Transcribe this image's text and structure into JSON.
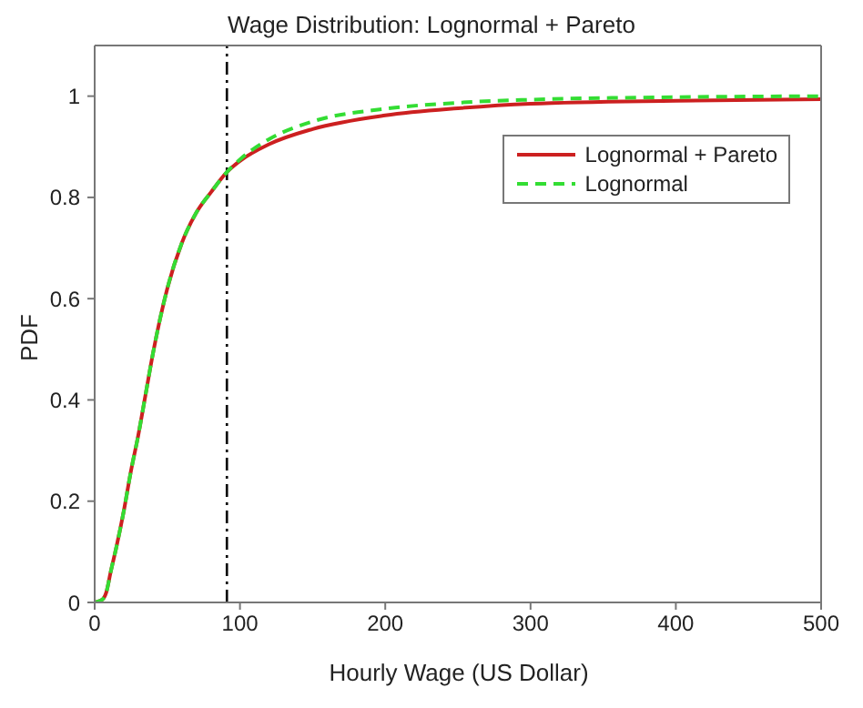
{
  "chart_data": {
    "type": "line",
    "title": "Wage Distribution: Lognormal + Pareto",
    "xlabel": "Hourly Wage (US Dollar)",
    "ylabel": "PDF",
    "x": [
      0,
      5,
      8,
      11,
      15,
      20,
      25,
      30,
      35,
      40,
      45,
      50,
      60,
      70,
      80,
      91,
      100,
      120,
      150,
      200,
      250,
      300,
      400,
      500
    ],
    "series": [
      {
        "name": "Lognormal + Pareto",
        "color": "#cc2020",
        "line_style": "solid",
        "values": [
          0,
          0.005,
          0.02,
          0.06,
          0.11,
          0.18,
          0.26,
          0.33,
          0.41,
          0.49,
          0.56,
          0.62,
          0.71,
          0.77,
          0.81,
          0.85,
          0.872,
          0.905,
          0.935,
          0.962,
          0.976,
          0.985,
          0.991,
          0.994
        ]
      },
      {
        "name": "Lognormal",
        "color": "#33dd33",
        "line_style": "dashed",
        "values": [
          0,
          0.005,
          0.02,
          0.06,
          0.11,
          0.18,
          0.26,
          0.33,
          0.41,
          0.49,
          0.56,
          0.62,
          0.71,
          0.77,
          0.81,
          0.85,
          0.875,
          0.915,
          0.95,
          0.975,
          0.987,
          0.993,
          0.998,
          1.0
        ]
      }
    ],
    "xlim": [
      0,
      500
    ],
    "xticks": [
      0,
      100,
      200,
      300,
      400,
      500
    ],
    "ylim": [
      0,
      1.1
    ],
    "yticks": [
      0,
      0.2,
      0.4,
      0.6,
      0.8,
      1
    ],
    "ref_lines": [
      {
        "axis": "x",
        "value": 91,
        "color": "#000000",
        "line_style": "dashed"
      }
    ],
    "legend": "top right",
    "grid": false,
    "marker": "none"
  }
}
